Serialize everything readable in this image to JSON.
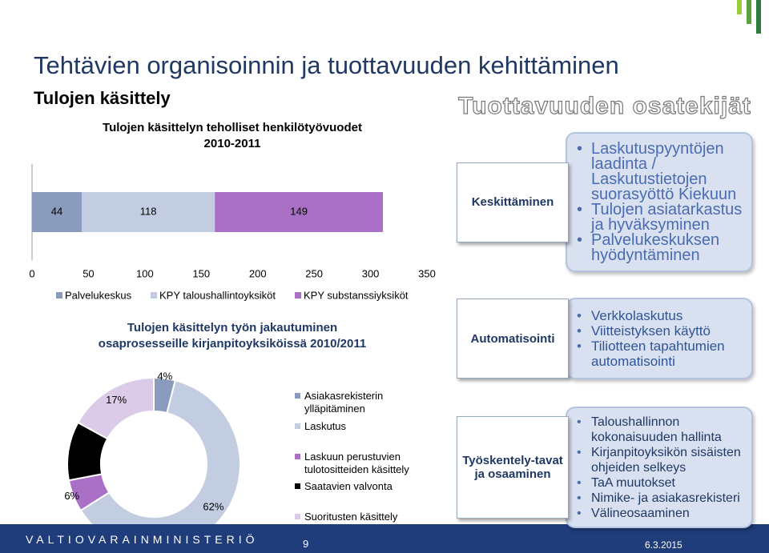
{
  "header": {
    "title": "Tehtävien organisoinnin ja tuottavuuden kehittäminen",
    "subtitle": "Tulojen käsittely"
  },
  "chart_data": [
    {
      "type": "stacked-hbar",
      "title": [
        "Tulojen käsittelyn teholliset henkilötyövuodet",
        "2010-2011"
      ],
      "categories": [
        null
      ],
      "series": [
        {
          "name": "Palvelukeskus",
          "color": "#8a9bbd",
          "values": [
            44
          ]
        },
        {
          "name": "KPY taloushallintoyksiköt",
          "color": "#c3cde2",
          "values": [
            118
          ]
        },
        {
          "name": "KPY substanssiyksiköt",
          "color": "#a970c6",
          "values": [
            149
          ]
        }
      ],
      "xlim": [
        0,
        350
      ],
      "xticks": [
        0,
        50,
        100,
        150,
        200,
        250,
        300,
        350
      ],
      "legend": "bottom"
    },
    {
      "type": "donut",
      "title": [
        "Tulojen käsittelyn työn jakautuminen",
        "osaprosesseille kirjanpitoyksiköissä 2010/2011"
      ],
      "categories": [
        "Asiakasrekisterin ylläpitäminen",
        "Laskutus",
        "Laskuun perustuvien tulotositteiden käsittely",
        "Saatavien valvonta",
        "Suoritusten käsittely"
      ],
      "values": [
        4,
        62,
        6,
        11,
        17
      ],
      "value_labels": [
        "4%",
        "62%",
        "6%",
        null,
        "17%"
      ],
      "colors": [
        "#8a9bbd",
        "#c3cde2",
        "#a970c6",
        "#000000",
        "#dccbe8"
      ],
      "legend": "right"
    }
  ],
  "diagram": {
    "title": "Tuottavuuden osatekijät",
    "rows": [
      {
        "label": "Keskittäminen",
        "bullets": [
          "Laskutuspyyntöjen laadinta / Laskutustietojen suorasyöttö Kiekuun",
          "Tulojen asiatarkastus ja hyväksyminen",
          "Palvelukeskuksen hyödyntäminen"
        ]
      },
      {
        "label": "Automatisointi",
        "bullets": [
          "Verkkolaskutus",
          "Viitteistyksen käyttö",
          "Tiliotteen tapahtumien automatisointi"
        ]
      },
      {
        "label": "Työskentely-tavat ja osaaminen",
        "bullets": [
          "Taloushallinnon kokonaisuuden hallinta",
          "Kirjanpitoyksikön sisäisten ohjeiden selkeys",
          "TaA muutokset",
          "Nimike- ja asiakasrekisteri",
          "Välineosaaminen"
        ]
      }
    ]
  },
  "footer": {
    "organization": "VALTIOVARAINMINISTERIÖ",
    "page": "9",
    "date": "6.3.2015"
  }
}
